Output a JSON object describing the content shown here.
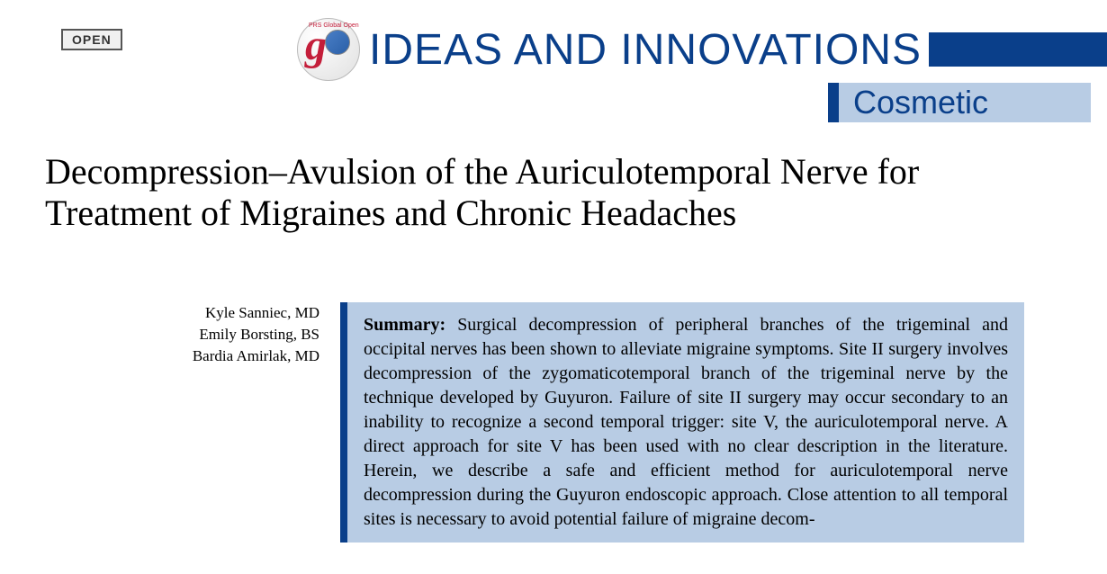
{
  "badge": {
    "label": "OPEN"
  },
  "header": {
    "logo_text": "PRS Global Open",
    "section_title": "IDEAS AND INNOVATIONS",
    "category": "Cosmetic"
  },
  "article": {
    "title": "Decompression–Avulsion of the Auriculotemporal Nerve for Treatment of Migraines and Chronic Headaches",
    "authors": [
      "Kyle Sanniec, MD",
      "Emily Borsting, BS",
      "Bardia Amirlak, MD"
    ],
    "summary_label": "Summary:",
    "summary_text": "Surgical decompression of peripheral branches of the trigeminal and occipital nerves has been shown to alleviate migraine symptoms. Site II surgery involves decompression of the zygomaticotemporal branch of the trigeminal nerve by the technique developed by Guyuron. Failure of site II surgery may occur secondary to an inability to recognize a second temporal trigger: site V, the auriculotemporal nerve. A direct approach for site V has been used with no clear description in the literature. Herein, we describe a safe and efficient method for auriculotemporal nerve decompression during the Guyuron endoscopic approach. Close attention to all temporal sites is necessary to avoid potential failure of migraine decom-"
  },
  "colors": {
    "primary_blue": "#0a3f8a",
    "light_blue": "#b8cce4",
    "badge_border": "#555555",
    "badge_bg": "#f0f0f0",
    "logo_red": "#c41e3a"
  }
}
